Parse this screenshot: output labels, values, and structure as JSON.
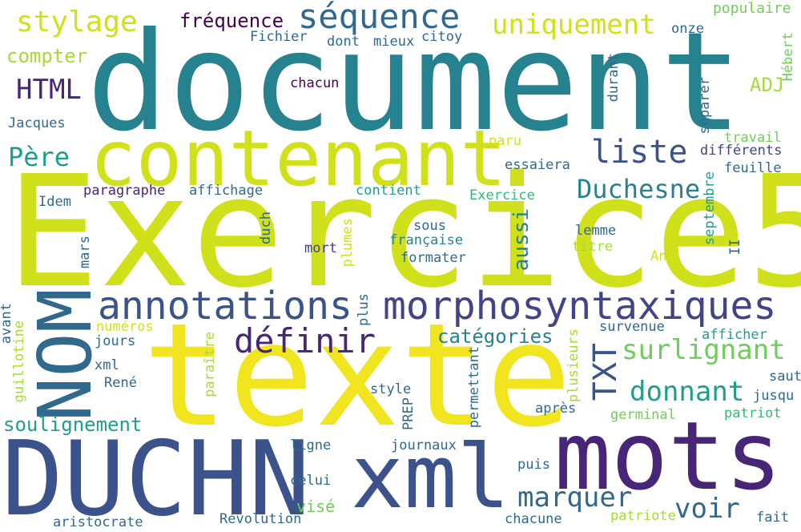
{
  "palette": {
    "teal": "#26828e",
    "lime": "#d0e11c",
    "yellow": "#f0e51e",
    "navy": "#3b528b",
    "indigo": "#482677",
    "purple": "#440154",
    "green": "#35b779",
    "lightgreen": "#6ece58",
    "yellowgreen": "#a5db36",
    "cyan": "#1f9e89",
    "blue": "#31688e",
    "slate": "#414487"
  },
  "words": {
    "document": "document",
    "exercice5": "Exercice5",
    "texte": "texte",
    "contenant": "contenant",
    "duchn": "DUCHN",
    "mots": "mots",
    "xml_big": "xml",
    "nom": "NOM",
    "morphosyntaxiques": "morphosyntaxiques",
    "annotations": "annotations",
    "sequence": "séquence",
    "stylage": "stylage",
    "uniquement": "uniquement",
    "frequence": "fréquence",
    "liste": "liste",
    "duchesne": "Duchesne",
    "definir": "définir",
    "surlignant": "surlignant",
    "donnant": "donnant",
    "txt": "TXT",
    "marquer": "marquer",
    "voir": "voir",
    "html": "HTML",
    "pere": "Père",
    "compter": "compter",
    "soulignement": "soulignement",
    "categories": "catégories",
    "adj": "ADJ",
    "aussi": "aussi",
    "populaire": "populaire",
    "fichier": "Fichier",
    "dont": "dont",
    "mieux": "mieux",
    "citoy": "citoy",
    "onze": "onze",
    "hebert": "Hébert",
    "separer": "séparer",
    "chacun": "chacun",
    "durant": "durant",
    "jacques": "Jacques",
    "travail": "travail",
    "differents": "différents",
    "paru": "paru",
    "essaiera": "essaiera",
    "feuille": "feuille",
    "paragraphe": "paragraphe",
    "affichage": "affichage",
    "contient": "contient",
    "exercice": "Exercice",
    "idem": "Idem",
    "duch": "duch",
    "septembre": "septembre",
    "lemme": "lemme",
    "sous": "sous",
    "francaise": "française",
    "titre": "titre",
    "mars": "mars",
    "plumes": "plumes",
    "mort": "mort",
    "formater": "formater",
    "an": "An",
    "ii": "II",
    "avant": "avant",
    "numeros": "numéros",
    "plus": "plus",
    "survenue": "survenue",
    "jours": "jours",
    "afficher": "afficher",
    "guillotine": "guillotine",
    "xml_small": "xml",
    "rene": "René",
    "paraitre": "paraître",
    "permettant": "permettant",
    "plusieurs": "plusieurs",
    "saut": "saut",
    "jusqu": "jusqu",
    "style": "style",
    "prep": "PREP",
    "apres": "après",
    "germinal": "germinal",
    "patriot": "patriot",
    "ligne": "ligne",
    "journaux": "journaux",
    "celui": "celui",
    "vise": "visé",
    "puis": "puis",
    "aristocrate": "aristocrate",
    "revolution": "Révolution",
    "chacune": "chacune",
    "patriote": "patriote",
    "fait": "fait"
  }
}
